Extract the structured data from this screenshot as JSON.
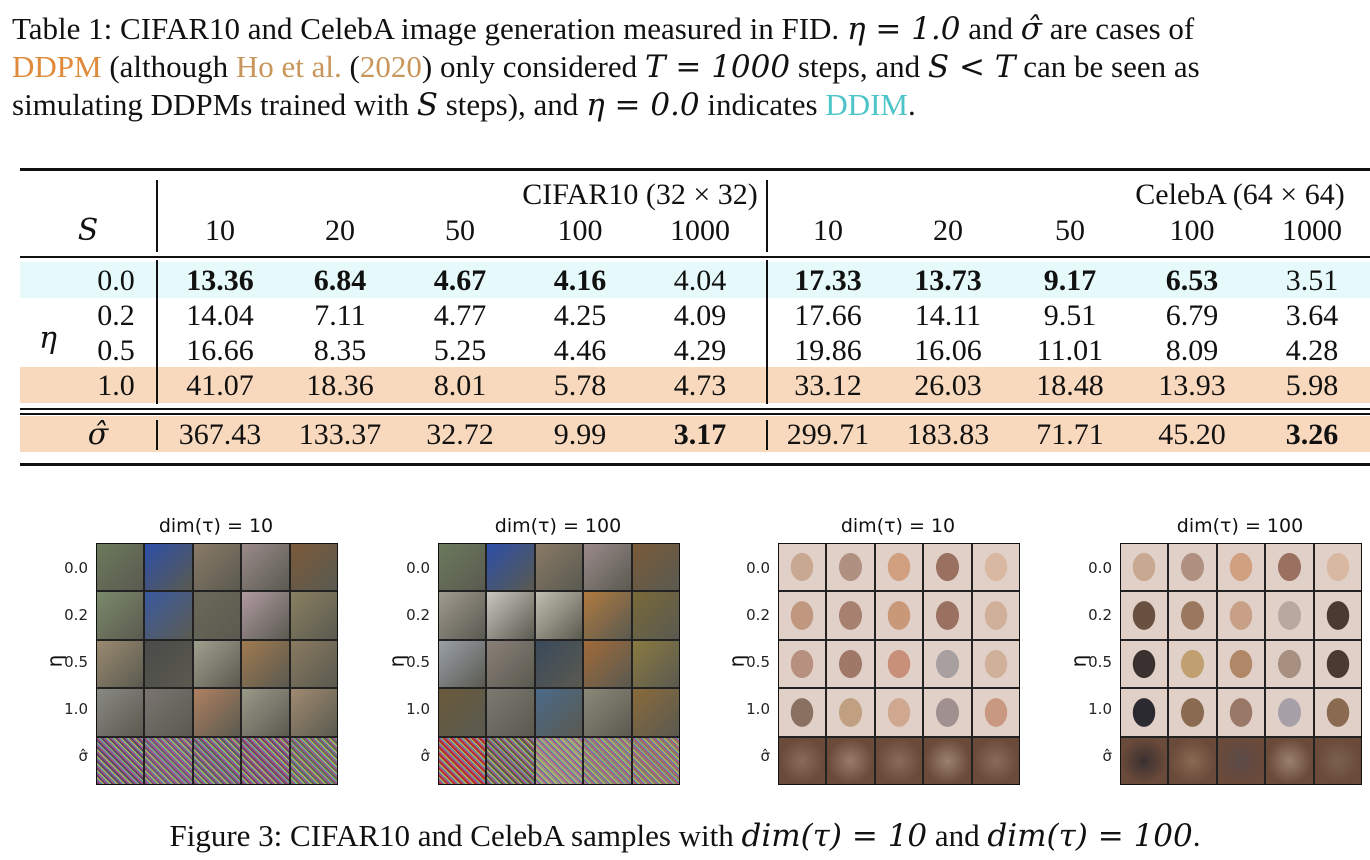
{
  "table_caption": {
    "label": "Table 1:",
    "line1_a": "CIFAR10 and CelebA image generation measured in FID. ",
    "eta_eq_1": "η = 1.0",
    "line1_b": " and ",
    "sigma_hat": "σ̂",
    "line1_c": " are cases of",
    "ddpm_link": "DDPM",
    "line2_a": " (although ",
    "ho_link": "Ho et al.",
    "line2_b": " (",
    "year_link": "2020",
    "line2_c": ") only considered ",
    "T_eq": "T = 1000",
    "line2_d": " steps, and ",
    "S_lt_T": "S < T",
    "line2_e": " can be seen as",
    "line3_a": "simulating DDPMs trained with ",
    "S": "S",
    "line3_b": " steps), and ",
    "eta_eq_0": "η = 0.0",
    "line3_c": " indicates ",
    "ddim_link": "DDIM",
    "line3_d": "."
  },
  "colors": {
    "ddim_row_bg": "#e6fafb",
    "ddpm_row_bg": "#f8d9bd",
    "ddpm_link": "#e08a3c",
    "citation_link": "#c8965a",
    "ddim_link": "#4dc4c8"
  },
  "table": {
    "row_header_S": "S",
    "row_header_eta": "η",
    "groups": [
      {
        "name": "CIFAR10 (32 × 32)",
        "steps": [
          "10",
          "20",
          "50",
          "100",
          "1000"
        ]
      },
      {
        "name": "CelebA (64 × 64)",
        "steps": [
          "10",
          "20",
          "50",
          "100",
          "1000"
        ]
      }
    ],
    "rows": [
      {
        "label": "0.0",
        "highlight": "ddim",
        "values": [
          "13.36",
          "6.84",
          "4.67",
          "4.16",
          "4.04",
          "17.33",
          "13.73",
          "9.17",
          "6.53",
          "3.51"
        ],
        "bold": [
          true,
          true,
          true,
          true,
          false,
          true,
          true,
          true,
          true,
          false
        ]
      },
      {
        "label": "0.2",
        "highlight": "none",
        "values": [
          "14.04",
          "7.11",
          "4.77",
          "4.25",
          "4.09",
          "17.66",
          "14.11",
          "9.51",
          "6.79",
          "3.64"
        ],
        "bold": [
          false,
          false,
          false,
          false,
          false,
          false,
          false,
          false,
          false,
          false
        ]
      },
      {
        "label": "0.5",
        "highlight": "none",
        "values": [
          "16.66",
          "8.35",
          "5.25",
          "4.46",
          "4.29",
          "19.86",
          "16.06",
          "11.01",
          "8.09",
          "4.28"
        ],
        "bold": [
          false,
          false,
          false,
          false,
          false,
          false,
          false,
          false,
          false,
          false
        ]
      },
      {
        "label": "1.0",
        "highlight": "ddpm",
        "values": [
          "41.07",
          "18.36",
          "8.01",
          "5.78",
          "4.73",
          "33.12",
          "26.03",
          "18.48",
          "13.93",
          "5.98"
        ],
        "bold": [
          false,
          false,
          false,
          false,
          false,
          false,
          false,
          false,
          false,
          false
        ]
      },
      {
        "label": "σ̂",
        "highlight": "ddpm",
        "values": [
          "367.43",
          "133.37",
          "32.72",
          "9.99",
          "3.17",
          "299.71",
          "183.83",
          "71.71",
          "45.20",
          "3.26"
        ],
        "bold": [
          false,
          false,
          false,
          false,
          true,
          false,
          false,
          false,
          false,
          true
        ]
      }
    ]
  },
  "figures": [
    {
      "title": "dim(τ) = 10",
      "dataset": "CIFAR10"
    },
    {
      "title": "dim(τ) = 100",
      "dataset": "CIFAR10"
    },
    {
      "title": "dim(τ) = 10",
      "dataset": "CelebA"
    },
    {
      "title": "dim(τ) = 100",
      "dataset": "CelebA"
    }
  ],
  "figure_axis": {
    "ylabel": "η",
    "row_labels": [
      "0.0",
      "0.2",
      "0.5",
      "1.0",
      "σ̂"
    ]
  },
  "figure_caption": {
    "label": "Figure 3:",
    "text": " CIFAR10 and CelebA samples with ",
    "dim10": "dim(τ) = 10",
    "and": " and ",
    "dim100": "dim(τ) = 100",
    "end": "."
  }
}
